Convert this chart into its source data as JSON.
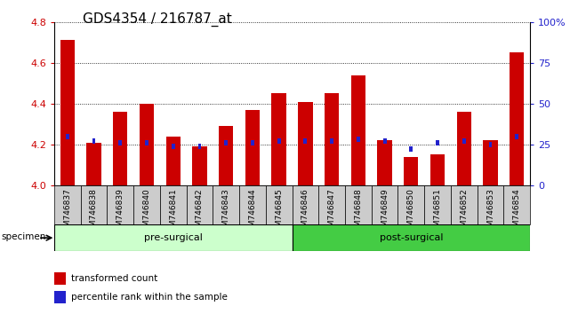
{
  "title": "GDS4354 / 216787_at",
  "samples": [
    "GSM746837",
    "GSM746838",
    "GSM746839",
    "GSM746840",
    "GSM746841",
    "GSM746842",
    "GSM746843",
    "GSM746844",
    "GSM746845",
    "GSM746846",
    "GSM746847",
    "GSM746848",
    "GSM746849",
    "GSM746850",
    "GSM746851",
    "GSM746852",
    "GSM746853",
    "GSM746854"
  ],
  "transformed_count": [
    4.71,
    4.21,
    4.36,
    4.4,
    4.24,
    4.19,
    4.29,
    4.37,
    4.45,
    4.41,
    4.45,
    4.54,
    4.22,
    4.14,
    4.15,
    4.36,
    4.22,
    4.65
  ],
  "percentile_pct": [
    30,
    27,
    26,
    26,
    24,
    24,
    26,
    26,
    27,
    27,
    27,
    28,
    27,
    22,
    26,
    27,
    25,
    30
  ],
  "bar_bottom": 4.0,
  "ylim_left": [
    4.0,
    4.8
  ],
  "ylim_right": [
    0,
    100
  ],
  "yticks_left": [
    4.0,
    4.2,
    4.4,
    4.6,
    4.8
  ],
  "yticks_right": [
    0,
    25,
    50,
    75,
    100
  ],
  "ytick_labels_right": [
    "0",
    "25",
    "50",
    "75",
    "100%"
  ],
  "group1_label": "pre-surgical",
  "group1_count": 9,
  "group2_label": "post-surgical",
  "group2_count": 9,
  "specimen_label": "specimen",
  "legend_red": "transformed count",
  "legend_blue": "percentile rank within the sample",
  "bar_color_red": "#cc0000",
  "bar_color_blue": "#2222cc",
  "group1_bg": "#ccffcc",
  "group2_bg": "#44cc44",
  "xticklabel_bg": "#cccccc",
  "plot_bg": "#ffffff",
  "grid_color": "#000000",
  "title_fontsize": 11,
  "tick_fontsize": 8,
  "label_fontsize": 8
}
